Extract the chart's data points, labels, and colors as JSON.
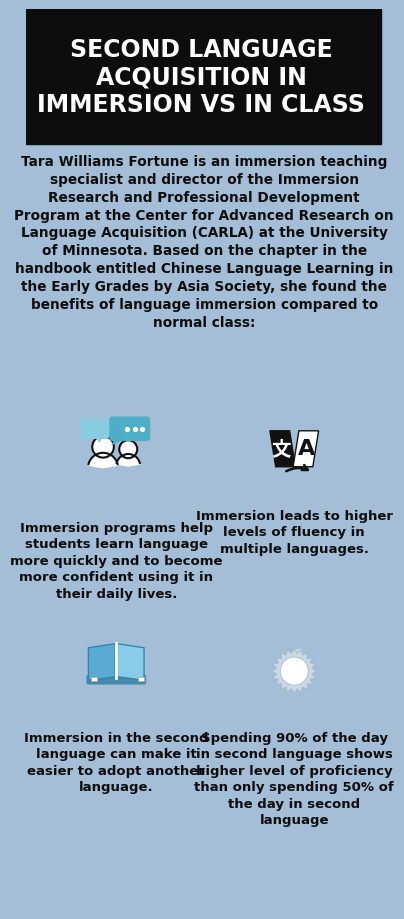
{
  "bg_color": "#a4bed8",
  "title_bg": "#0d0d0d",
  "title_text": "SECOND LANGUAGE\nACQUISITION IN\nIMMERSION VS IN CLASS",
  "title_color": "#ffffff",
  "intro_text": "Tara Williams Fortune is an immersion teaching\nspecialist and director of the Immersion\nResearch and Professional Development\nProgram at the Center for Advanced Research on\nLanguage Acquisition (CARLA) at the University\nof Minnesota. Based on the chapter in the\nhandbook entitled Chinese Language Learning in\nthe Early Grades by Asia Society, she found the\nbenefits of language immersion compared to\nnormal class:",
  "icon1_label": "Immersion programs help\nstudents learn language\nmore quickly and to become\nmore confident using it in\ntheir daily lives.",
  "icon2_label": "Immersion leads to higher\nlevels of fluency in\nmultiple languages.",
  "icon3_label": "Immersion in the second\nlanguage can make it\neasier to adopt another\nlanguage.",
  "icon4_label": "Spending 90% of the day\nin second language shows\nhigher level of proficiency\nthan only spending 50% of\nthe day in second\nlanguage",
  "text_color": "#0d0d0d",
  "title_fontsize": 17,
  "intro_fontsize": 9.8,
  "caption_fontsize": 9.5,
  "bubble_blue": "#4eaec8",
  "bubble_light": "#88cce0",
  "translate_dark": "#111111",
  "book_blue": "#88c8e8",
  "book_dark_blue": "#4488aa",
  "medal_light": "#d8dfe8",
  "medal_ribbon": "#a8b8c8"
}
